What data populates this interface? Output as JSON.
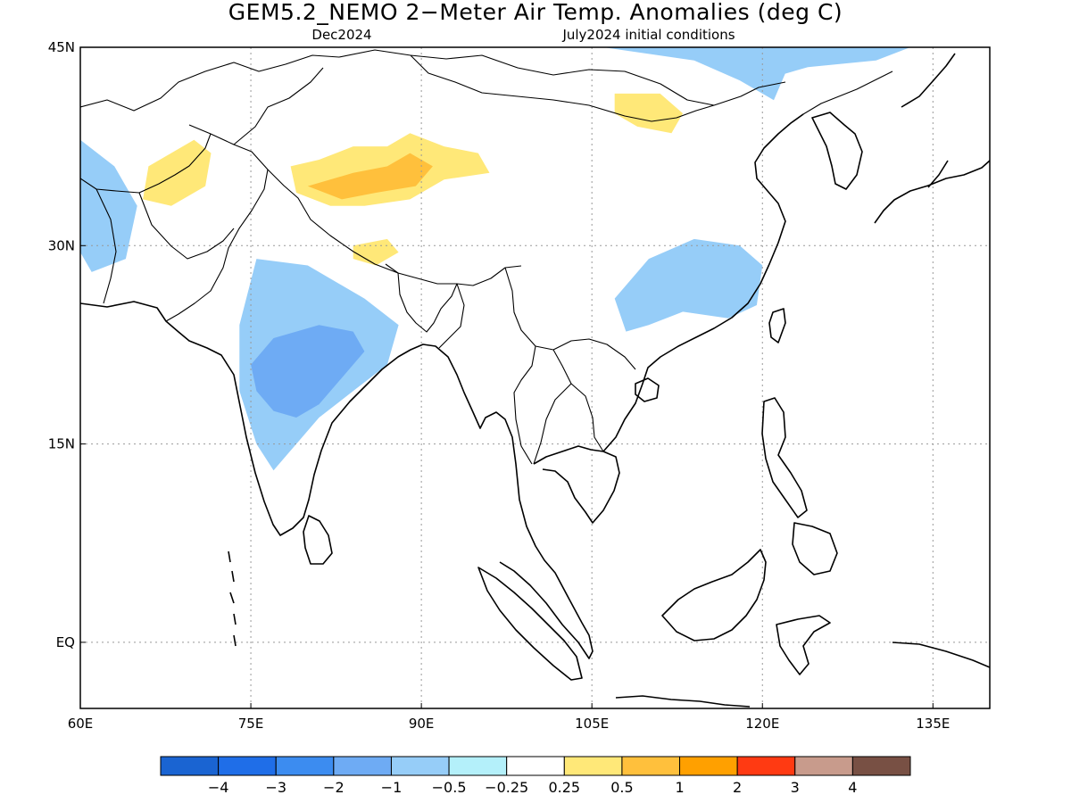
{
  "title": "GEM5.2_NEMO 2−Meter Air Temp. Anomalies (deg C)",
  "valid_month": "Dec2024",
  "initial_conditions": "July2024 initial conditions",
  "chart_data": {
    "type": "heatmap",
    "map_extent": {
      "lon": [
        60,
        140
      ],
      "lat": [
        -5,
        45
      ]
    },
    "lon_ticks": [
      {
        "value": 60,
        "label": "60E"
      },
      {
        "value": 75,
        "label": "75E"
      },
      {
        "value": 90,
        "label": "90E"
      },
      {
        "value": 105,
        "label": "105E"
      },
      {
        "value": 120,
        "label": "120E"
      },
      {
        "value": 135,
        "label": "135E"
      }
    ],
    "lat_ticks": [
      {
        "value": 45,
        "label": "45N"
      },
      {
        "value": 30,
        "label": "30N"
      },
      {
        "value": 15,
        "label": "15N"
      },
      {
        "value": 0,
        "label": "EQ"
      }
    ],
    "grid": true,
    "colorbar": {
      "colors": [
        "#1a64d2",
        "#1f6ee8",
        "#3c8cf0",
        "#6eabf4",
        "#96cdf8",
        "#b4f0fa",
        "#ffffff",
        "#ffe878",
        "#ffc03c",
        "#ffa000",
        "#ff3a12",
        "#c89b8c",
        "#785044"
      ],
      "labels": [
        "−4",
        "−3",
        "−2",
        "−1",
        "−0.5",
        "−0.25",
        "0.25",
        "0.5",
        "1",
        "2",
        "3",
        "4"
      ]
    },
    "anomaly_regions": [
      {
        "level": -1.0,
        "color": "#96cdf8",
        "region": "central India",
        "outline": [
          [
            75.5,
            29
          ],
          [
            80,
            28.5
          ],
          [
            85,
            26
          ],
          [
            88,
            24
          ],
          [
            87,
            21
          ],
          [
            84,
            19
          ],
          [
            81,
            17
          ],
          [
            79,
            15
          ],
          [
            77,
            13
          ],
          [
            75.5,
            15
          ],
          [
            74,
            19
          ],
          [
            74,
            24
          ]
        ]
      },
      {
        "level": -2.0,
        "color": "#6eabf4",
        "region": "central India core",
        "outline": [
          [
            75,
            21
          ],
          [
            77,
            23
          ],
          [
            81,
            24
          ],
          [
            84,
            23.5
          ],
          [
            85,
            22
          ],
          [
            83,
            20
          ],
          [
            81,
            18
          ],
          [
            79,
            17
          ],
          [
            77,
            17.5
          ],
          [
            75.5,
            19
          ]
        ]
      },
      {
        "level": -1.0,
        "color": "#96cdf8",
        "region": "southern China",
        "outline": [
          [
            107,
            26
          ],
          [
            110,
            29
          ],
          [
            114,
            30.5
          ],
          [
            118,
            30
          ],
          [
            120,
            28.5
          ],
          [
            119.5,
            25.5
          ],
          [
            117,
            24.5
          ],
          [
            113,
            25
          ],
          [
            110,
            24
          ],
          [
            108,
            23.5
          ]
        ]
      },
      {
        "level": -1.0,
        "color": "#96cdf8",
        "region": "Mongolia / northeast China",
        "outline": [
          [
            106,
            45
          ],
          [
            110,
            44.5
          ],
          [
            114,
            44
          ],
          [
            118,
            42.5
          ],
          [
            121,
            41
          ],
          [
            122,
            43
          ],
          [
            124,
            43.5
          ],
          [
            130,
            44
          ],
          [
            133,
            45
          ]
        ]
      },
      {
        "level": -1.0,
        "color": "#96cdf8",
        "region": "Afghanistan / Iran",
        "outline": [
          [
            60,
            38
          ],
          [
            63,
            36
          ],
          [
            65,
            33
          ],
          [
            64,
            29
          ],
          [
            61,
            28
          ],
          [
            60,
            29.5
          ]
        ]
      },
      {
        "level": 0.5,
        "color": "#ffe878",
        "region": "western Tibetan Plateau",
        "outline": [
          [
            78.5,
            36
          ],
          [
            81,
            36.5
          ],
          [
            84,
            37.5
          ],
          [
            87,
            37.5
          ],
          [
            89,
            38.5
          ],
          [
            92,
            37.5
          ],
          [
            95,
            37
          ],
          [
            96,
            35.5
          ],
          [
            92,
            35
          ],
          [
            89,
            33.5
          ],
          [
            85,
            33
          ],
          [
            82,
            33
          ],
          [
            79,
            34
          ]
        ]
      },
      {
        "level": 1.0,
        "color": "#ffc03c",
        "region": "western Tibetan Plateau core",
        "outline": [
          [
            80,
            34.5
          ],
          [
            84,
            35.5
          ],
          [
            87,
            36
          ],
          [
            89,
            37
          ],
          [
            91,
            36
          ],
          [
            89.5,
            34.5
          ],
          [
            86,
            34
          ],
          [
            83,
            33.5
          ]
        ]
      },
      {
        "level": 0.5,
        "color": "#ffe878",
        "region": "northern Pakistan / Afghanistan",
        "outline": [
          [
            66,
            36
          ],
          [
            70,
            38
          ],
          [
            71.5,
            37
          ],
          [
            71,
            34.5
          ],
          [
            68,
            33
          ],
          [
            65.5,
            33.5
          ]
        ]
      },
      {
        "level": 0.5,
        "color": "#ffe878",
        "region": "southern Tibet",
        "outline": [
          [
            84,
            30
          ],
          [
            87,
            30.5
          ],
          [
            88,
            29.5
          ],
          [
            86,
            28.5
          ],
          [
            84,
            29
          ]
        ]
      },
      {
        "level": 0.5,
        "color": "#ffe878",
        "region": "Inner Mongolia",
        "outline": [
          [
            107,
            41.5
          ],
          [
            111,
            41.5
          ],
          [
            113,
            40
          ],
          [
            112,
            38.5
          ],
          [
            109,
            39
          ],
          [
            107,
            40
          ]
        ]
      }
    ]
  }
}
